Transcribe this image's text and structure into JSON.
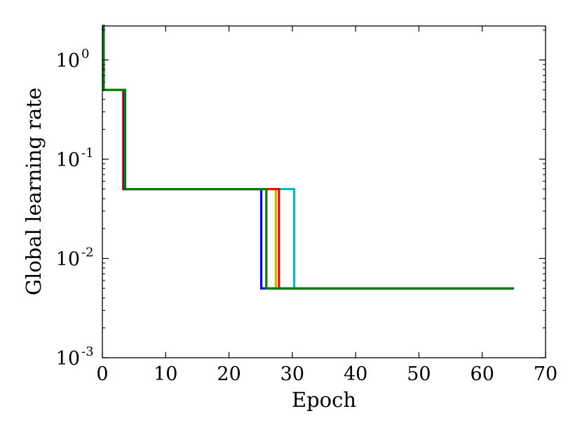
{
  "chart_data": {
    "type": "line",
    "title": "",
    "xlabel": "Epoch",
    "ylabel": "Global learning rate",
    "xlim": [
      0,
      70
    ],
    "ylim": [
      0.001,
      2.2
    ],
    "yscale": "log",
    "grid": false,
    "legend": "none",
    "x_ticks": [
      0,
      10,
      20,
      30,
      40,
      50,
      60,
      70
    ],
    "x_tick_labels": [
      "0",
      "10",
      "20",
      "30",
      "40",
      "50",
      "60",
      "70"
    ],
    "y_ticks": [
      0.001,
      0.01,
      0.1,
      1
    ],
    "y_tick_labels": [
      {
        "base": "10",
        "exp": "-3"
      },
      {
        "base": "10",
        "exp": "-2"
      },
      {
        "base": "10",
        "exp": "-1"
      },
      {
        "base": "10",
        "exp": "0"
      }
    ],
    "series": [
      {
        "color": "#00bfbf",
        "drops": [
          3.3,
          30.3
        ],
        "end": 65
      },
      {
        "color": "#bfbf00",
        "drops": [
          3.3,
          27.4
        ],
        "end": 65
      },
      {
        "color": "#ff0000",
        "drops": [
          3.3,
          27.9
        ],
        "end": 65
      },
      {
        "color": "#0000ff",
        "drops": [
          3.5,
          25.1
        ],
        "end": 65
      },
      {
        "color": "#008000",
        "drops": [
          3.6,
          25.9
        ],
        "end": 65
      }
    ],
    "levels": [
      2.2,
      0.5,
      0.05,
      0.005
    ],
    "initial_drop_epoch": 0.2
  }
}
